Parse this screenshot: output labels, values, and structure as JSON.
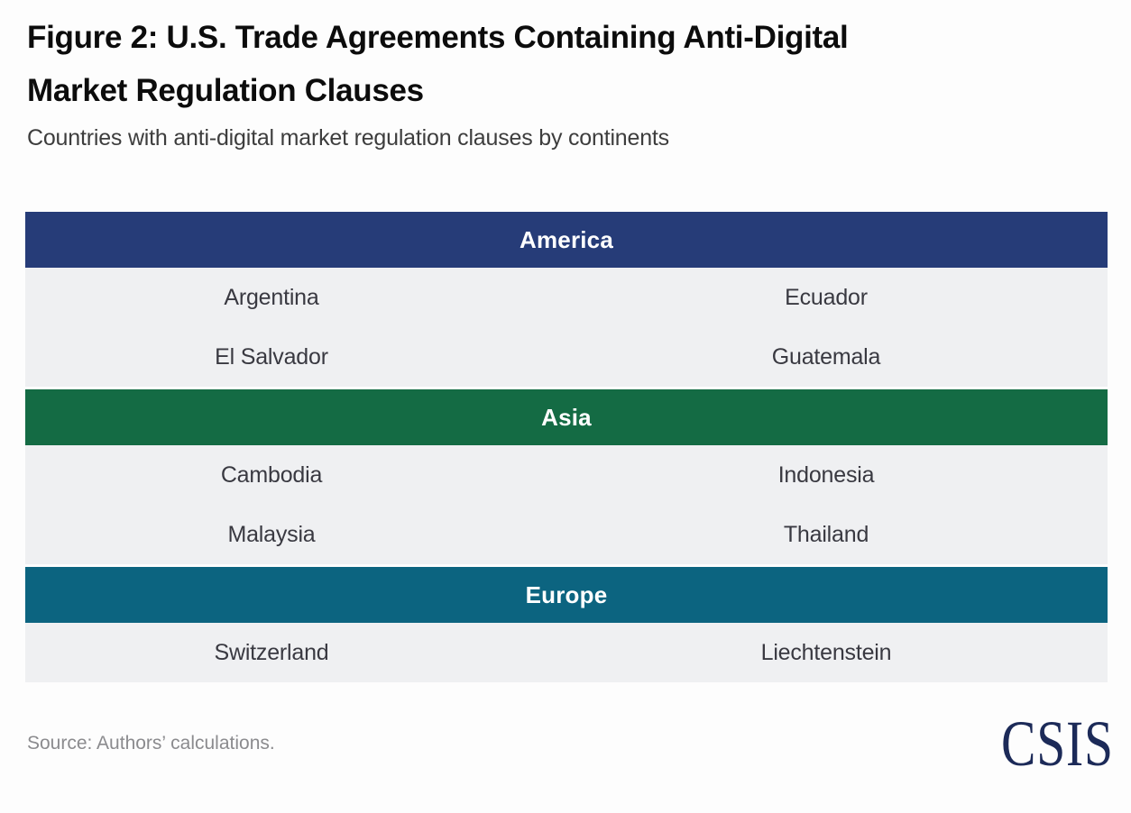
{
  "figure": {
    "title_line1": "Figure 2: U.S. Trade Agreements Containing Anti-Digital",
    "title_line2": "Market Regulation Clauses",
    "subtitle": "Countries with anti-digital market regulation clauses by continents"
  },
  "table": {
    "row_background": "#EFF0F2",
    "sections": [
      {
        "name": "America",
        "color": "#263C78",
        "rows": [
          {
            "left": "Argentina",
            "right": "Ecuador"
          },
          {
            "left": "El Salvador",
            "right": "Guatemala"
          }
        ]
      },
      {
        "name": "Asia",
        "color": "#146B44",
        "rows": [
          {
            "left": "Cambodia",
            "right": "Indonesia"
          },
          {
            "left": "Malaysia",
            "right": "Thailand"
          }
        ]
      },
      {
        "name": "Europe",
        "color": "#0C6480",
        "rows": [
          {
            "left": "Switzerland",
            "right": "Liechtenstein"
          }
        ]
      }
    ]
  },
  "footer": {
    "source": "Source: Authors’ calculations.",
    "logo_text": "CSIS",
    "logo_color": "#1C2A58"
  },
  "chart_data": {
    "type": "table",
    "title": "Figure 2: U.S. Trade Agreements Containing Anti-Digital Market Regulation Clauses",
    "subtitle": "Countries with anti-digital market regulation clauses by continents",
    "legend_position": "none",
    "groups": [
      {
        "continent": "America",
        "header_color": "#263C78",
        "countries": [
          "Argentina",
          "Ecuador",
          "El Salvador",
          "Guatemala"
        ]
      },
      {
        "continent": "Asia",
        "header_color": "#146B44",
        "countries": [
          "Cambodia",
          "Indonesia",
          "Malaysia",
          "Thailand"
        ]
      },
      {
        "continent": "Europe",
        "header_color": "#0C6480",
        "countries": [
          "Switzerland",
          "Liechtenstein"
        ]
      }
    ],
    "source": "Source: Authors’ calculations."
  }
}
